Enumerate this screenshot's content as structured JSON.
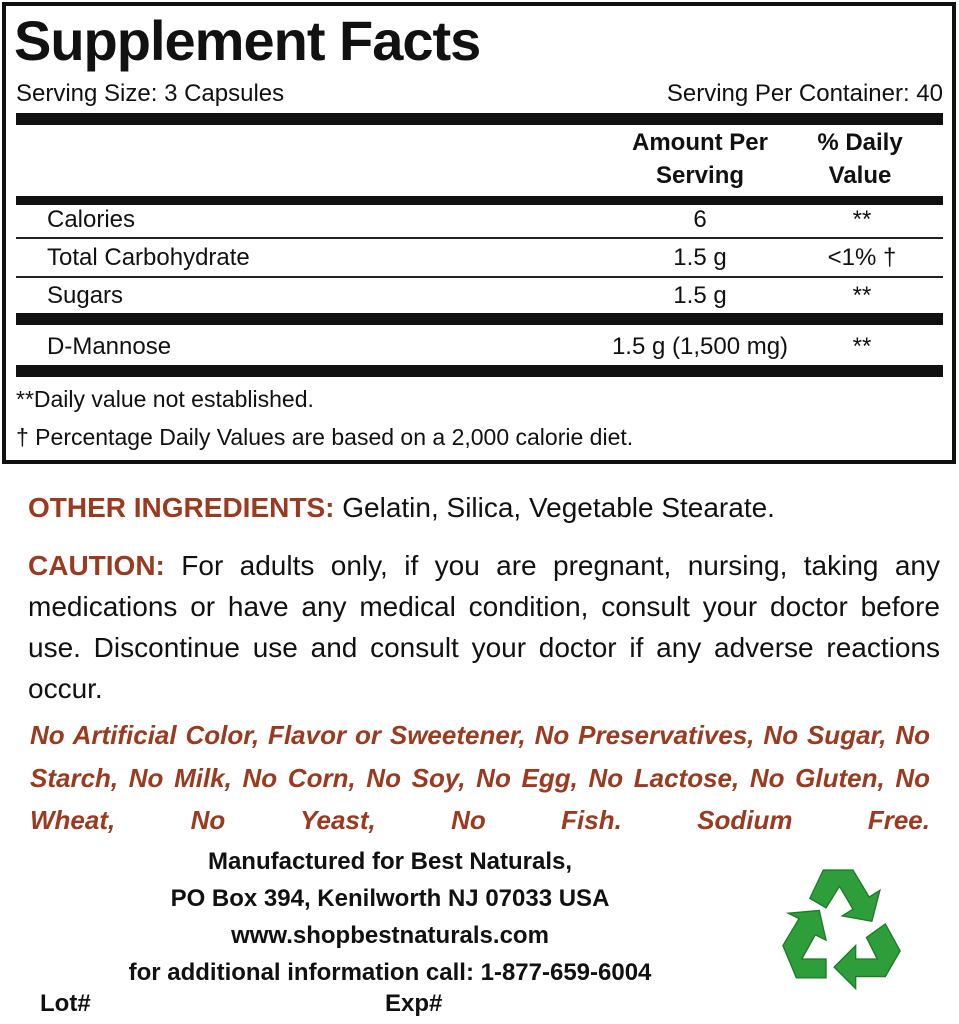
{
  "facts": {
    "title": "Supplement Facts",
    "serving_size": "Serving Size: 3 Capsules",
    "servings_per_container": "Serving Per Container: 40",
    "col_amount": "Amount Per Serving",
    "col_dv": "% Daily Value",
    "rows": [
      {
        "name": "Calories",
        "amount": "6",
        "dv": "**"
      },
      {
        "name": "Total Carbohydrate",
        "amount": "1.5 g",
        "dv": "<1% †"
      },
      {
        "name": "Sugars",
        "amount": "1.5 g",
        "dv": "**"
      },
      {
        "name": "D-Mannose",
        "amount": "1.5 g (1,500 mg)",
        "dv": "**"
      }
    ],
    "footnote1": "**Daily value not established.",
    "footnote2": "† Percentage Daily Values are based on a 2,000 calorie diet."
  },
  "other_ingredients": {
    "label": "OTHER INGREDIENTS:",
    "text": " Gelatin, Silica, Vegetable Stearate."
  },
  "caution": {
    "label": "CAUTION:",
    "text": " For adults only, if you are pregnant, nursing, taking any medications or have any medical condition, consult your doctor before use. Discontinue use and consult your doctor if any adverse reactions occur."
  },
  "free_from": "No Artificial Color, Flavor or Sweetener, No Preservatives, No Sugar, No Starch, No Milk, No Corn, No Soy, No Egg, No Lactose, No Gluten, No Wheat, No Yeast, No Fish. Sodium Free.",
  "manufacturer": {
    "line1": "Manufactured for Best Naturals,",
    "line2": "PO Box 394, Kenilworth NJ 07033 USA",
    "website": "www.shopbestnaturals.com",
    "phone": "for additional information call: 1-877-659-6004"
  },
  "lot_label": "Lot#",
  "exp_label": "Exp#",
  "colors": {
    "accent_brown": "#9b3a1f",
    "recycle_green": "#2e9e3a"
  },
  "icons": {
    "recycle": "recycle-icon"
  }
}
